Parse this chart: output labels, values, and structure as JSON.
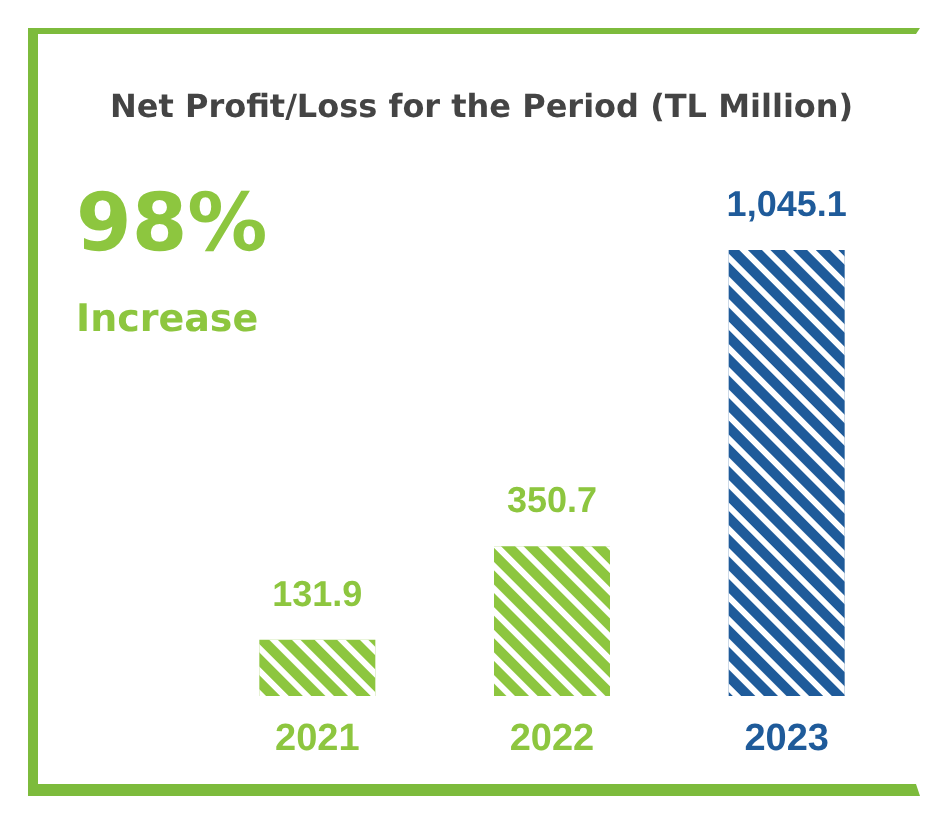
{
  "chart_data": {
    "type": "bar",
    "title": "Net Profit/Loss for the Period (TL Million)",
    "categories": [
      "2021",
      "2022",
      "2023"
    ],
    "values": [
      131.9,
      350.7,
      1045.1
    ],
    "colors": [
      "#8dc63f",
      "#8dc63f",
      "#1f5b9a"
    ],
    "value_labels": [
      "131.9",
      "350.7",
      "1,045.1"
    ],
    "annotations": [
      "98%",
      "Increase"
    ]
  }
}
